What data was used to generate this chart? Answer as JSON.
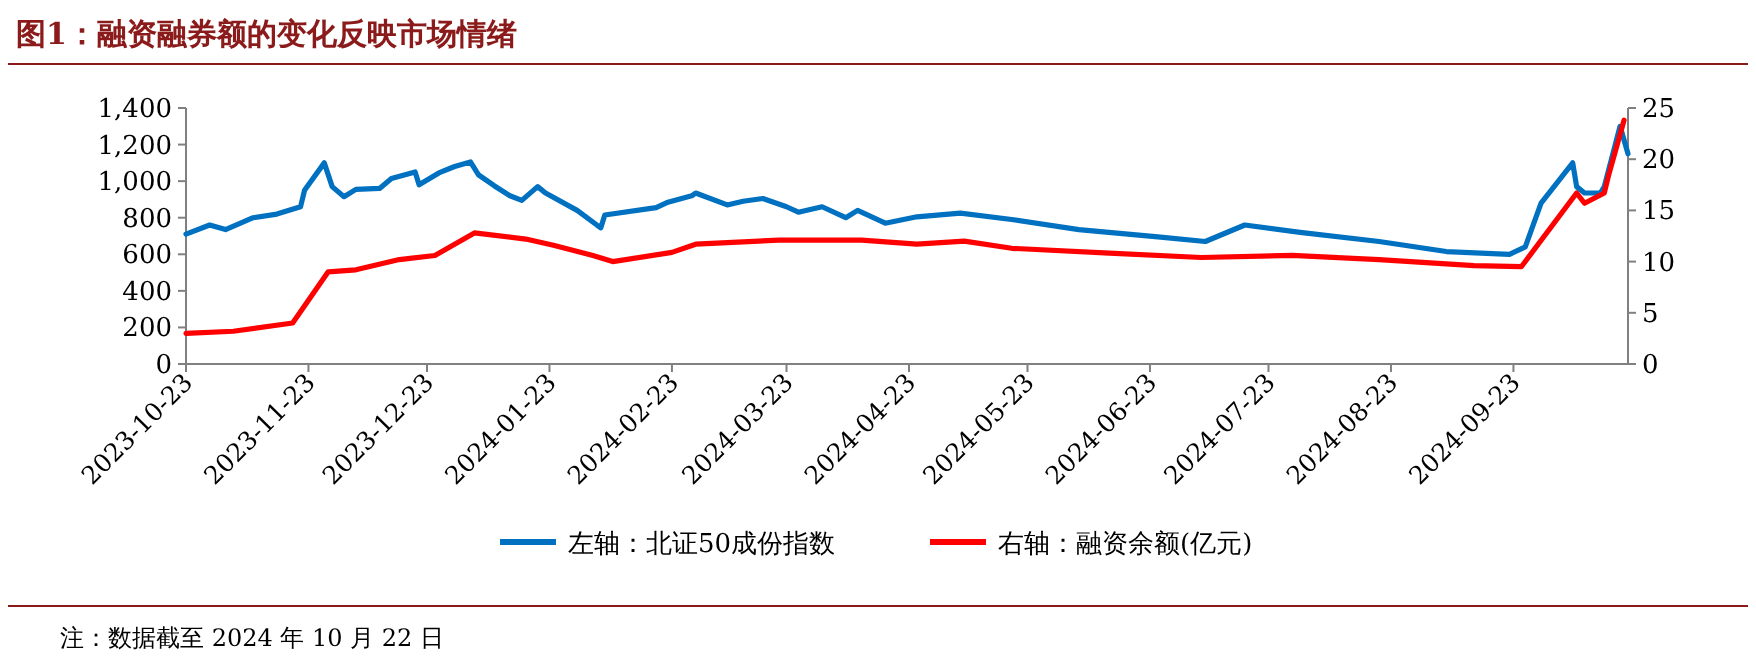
{
  "chart_data": {
    "type": "line",
    "title": "图1：融资融券额的变化反映市场情绪",
    "annotations": [
      "注：数据截至 2024 年 10 月 22 日"
    ],
    "legend": "bottom",
    "xlim": [
      "2023-10-23",
      "2024-10-22"
    ],
    "xticks": [
      "2023-10-23",
      "2023-11-23",
      "2023-12-23",
      "2024-01-23",
      "2024-02-23",
      "2024-03-23",
      "2024-04-23",
      "2024-05-23",
      "2024-06-23",
      "2024-07-23",
      "2024-08-23",
      "2024-09-23"
    ],
    "ylim": [
      0,
      1400
    ],
    "yticks": [
      0,
      200,
      400,
      600,
      800,
      {
        "value": 1000,
        "label": "1,000"
      },
      {
        "value": 1200,
        "label": "1,200"
      },
      {
        "value": 1400,
        "label": "1,400"
      }
    ],
    "y2lim": [
      0,
      25
    ],
    "y2ticks": [
      0,
      5,
      10,
      15,
      20,
      25
    ],
    "series": [
      {
        "name": "左轴：北证50成份指数",
        "color": "#0070c0",
        "x": [
          "2023-10-23",
          "2023-10-29",
          "2023-11-02",
          "2023-11-09",
          "2023-11-15",
          "2023-11-21",
          "2023-11-22",
          "2023-11-27",
          "2023-11-29",
          "2023-12-02",
          "2023-12-05",
          "2023-12-11",
          "2023-12-14",
          "2023-12-20",
          "2023-12-21",
          "2023-12-26",
          "2023-12-30",
          "2024-01-03",
          "2024-01-05",
          "2024-01-09",
          "2024-01-13",
          "2024-01-16",
          "2024-01-20",
          "2024-01-22",
          "2024-01-30",
          "2024-02-04",
          "2024-02-05",
          "2024-02-06",
          "2024-02-19",
          "2024-02-22",
          "2024-02-28",
          "2024-02-29",
          "2024-03-08",
          "2024-03-12",
          "2024-03-17",
          "2024-03-23",
          "2024-03-26",
          "2024-04-01",
          "2024-04-07",
          "2024-04-10",
          "2024-04-17",
          "2024-04-25",
          "2024-05-06",
          "2024-05-19",
          "2024-06-05",
          "2024-06-25",
          "2024-07-07",
          "2024-07-17",
          "2024-07-31",
          "2024-08-20",
          "2024-09-06",
          "2024-09-22",
          "2024-09-26",
          "2024-09-30",
          "2024-10-08",
          "2024-10-09",
          "2024-10-11",
          "2024-10-15",
          "2024-10-16",
          "2024-10-20",
          "2024-10-21",
          "2024-10-22"
        ],
        "values": [
          710,
          760,
          735,
          800,
          820,
          860,
          950,
          1100,
          970,
          915,
          955,
          960,
          1015,
          1050,
          980,
          1045,
          1080,
          1105,
          1035,
          975,
          920,
          895,
          970,
          935,
          840,
          760,
          745,
          815,
          855,
          885,
          920,
          935,
          870,
          890,
          905,
          860,
          830,
          860,
          800,
          840,
          770,
          805,
          825,
          790,
          735,
          695,
          670,
          760,
          720,
          670,
          615,
          600,
          640,
          880,
          1100,
          970,
          935,
          935,
          970,
          1300,
          1225,
          1150
        ]
      },
      {
        "name": "右轴：融资余额(亿元)",
        "color": "#ff0000",
        "axis": "y2",
        "x": [
          "2023-10-23",
          "2023-11-04",
          "2023-11-19",
          "2023-11-28",
          "2023-12-05",
          "2023-12-16",
          "2023-12-25",
          "2024-01-04",
          "2024-01-17",
          "2024-01-24",
          "2024-02-03",
          "2024-02-08",
          "2024-02-23",
          "2024-02-29",
          "2024-03-21",
          "2024-04-11",
          "2024-04-25",
          "2024-05-07",
          "2024-05-19",
          "2024-06-14",
          "2024-07-06",
          "2024-07-29",
          "2024-08-20",
          "2024-09-13",
          "2024-09-25",
          "2024-10-09",
          "2024-10-11",
          "2024-10-16",
          "2024-10-17",
          "2024-10-21"
        ],
        "values": [
          3.0,
          3.2,
          4.0,
          9.0,
          9.2,
          10.2,
          10.6,
          12.8,
          12.2,
          11.6,
          10.6,
          10.0,
          10.9,
          11.7,
          12.1,
          12.1,
          11.7,
          12.0,
          11.3,
          10.8,
          10.4,
          10.6,
          10.2,
          9.6,
          9.5,
          16.7,
          15.7,
          16.7,
          18.3,
          23.8
        ]
      }
    ]
  }
}
